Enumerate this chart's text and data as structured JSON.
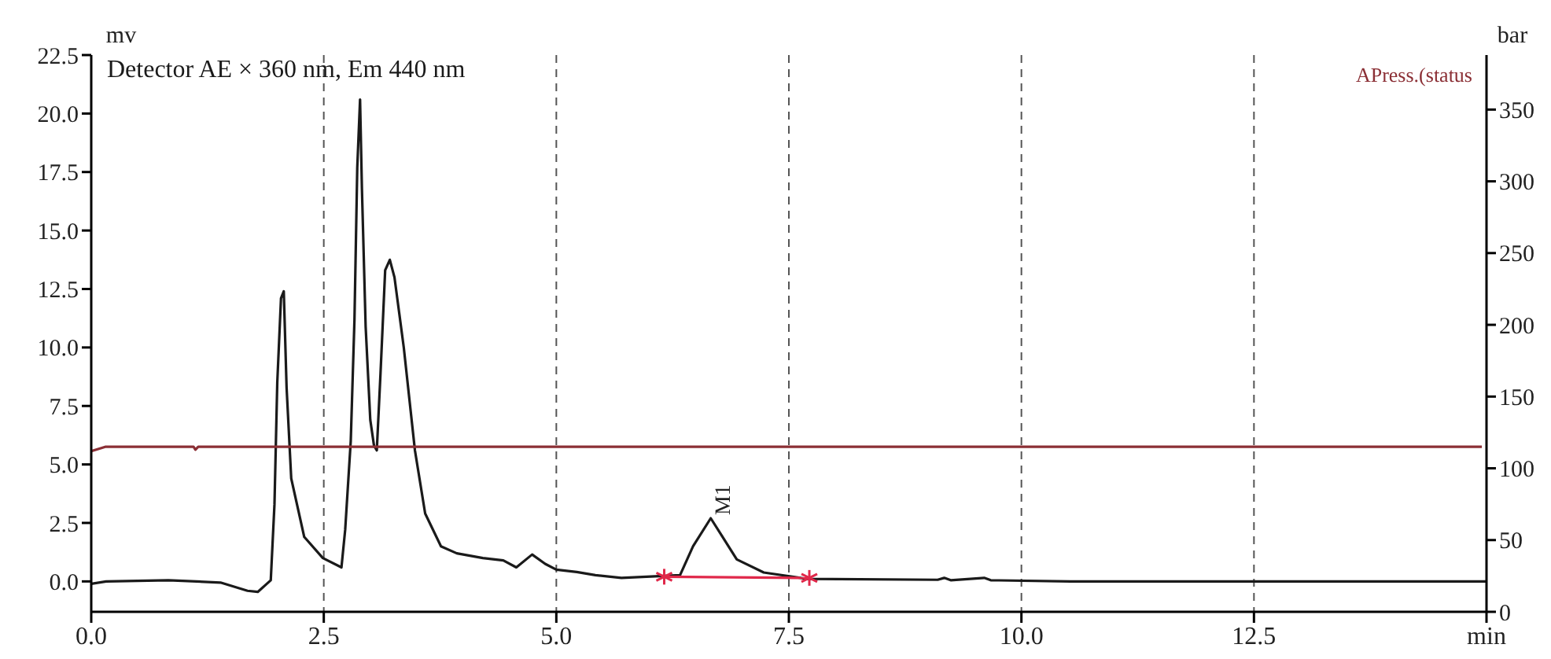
{
  "chart_data": {
    "type": "line",
    "xlim": [
      0,
      15
    ],
    "xticks": [
      {
        "value": 0,
        "label": "0.0"
      },
      {
        "value": 2.5,
        "label": "2.5"
      },
      {
        "value": 5,
        "label": "5.0"
      },
      {
        "value": 7.5,
        "label": "7.5"
      },
      {
        "value": 10,
        "label": "10.0"
      },
      {
        "value": 12.5,
        "label": "12.5"
      },
      {
        "value": 15,
        "label": "min"
      }
    ],
    "ylim": [
      -1.3,
      22.5
    ],
    "yticks": [
      {
        "value": 0,
        "label": "0.0"
      },
      {
        "value": 2.5,
        "label": "2.5"
      },
      {
        "value": 5,
        "label": "5.0"
      },
      {
        "value": 7.5,
        "label": "7.5"
      },
      {
        "value": 10,
        "label": "10.0"
      },
      {
        "value": 12.5,
        "label": "12.5"
      },
      {
        "value": 15,
        "label": "15.0"
      },
      {
        "value": 17.5,
        "label": "17.5"
      },
      {
        "value": 20,
        "label": "20.0"
      },
      {
        "value": 22.5,
        "label": "22.5"
      }
    ],
    "y2lim": [
      0,
      388
    ],
    "y2ticks": [
      0,
      50,
      100,
      150,
      200,
      250,
      300,
      350
    ],
    "ylabel": "mv",
    "y2label": "bar",
    "grid": "x",
    "marker": "none",
    "line_style": "solid",
    "annotations": [
      {
        "text": "M1",
        "x": 6.66,
        "y": 2.7
      }
    ],
    "series": [
      {
        "name": "Detector AE × 360 nm, Em 440 nm",
        "color": "#1a1a1a",
        "x": [
          0,
          0.16,
          0.83,
          1.39,
          1.68,
          1.79,
          1.93,
          1.97,
          2.0,
          2.04,
          2.07,
          2.1,
          2.15,
          2.29,
          2.49,
          2.69,
          2.73,
          2.79,
          2.83,
          2.86,
          2.89,
          2.91,
          2.95,
          3.0,
          3.04,
          3.07,
          3.11,
          3.16,
          3.21,
          3.26,
          3.36,
          3.48,
          3.59,
          3.76,
          3.93,
          4.21,
          4.43,
          4.57,
          4.74,
          4.88,
          5.0,
          5.22,
          5.42,
          5.7,
          6.33,
          6.47,
          6.66,
          6.78,
          6.94,
          7.23,
          7.69,
          9.1,
          9.17,
          9.24,
          9.6,
          9.67,
          10.53,
          15
        ],
        "values": [
          -0.1,
          0,
          0.05,
          -0.05,
          -0.4,
          -0.45,
          0.05,
          3.3,
          8.5,
          12.1,
          12.4,
          8.3,
          4.4,
          1.9,
          1.0,
          0.6,
          2.2,
          6.0,
          11.2,
          17.7,
          20.6,
          16.8,
          10.9,
          6.9,
          5.8,
          5.6,
          8.9,
          13.3,
          13.75,
          13.0,
          10.0,
          5.6,
          2.9,
          1.5,
          1.2,
          1.0,
          0.9,
          0.6,
          1.15,
          0.75,
          0.5,
          0.4,
          0.27,
          0.15,
          0.27,
          1.5,
          2.7,
          1.95,
          0.94,
          0.38,
          0.11,
          0.07,
          0.15,
          0.05,
          0.15,
          0.05,
          0,
          0
        ]
      },
      {
        "name": "APress.(status",
        "color": "#8b2f35",
        "axis": "y2",
        "x": [
          0,
          0.15,
          1.1,
          1.12,
          1.15,
          14.95
        ],
        "values": [
          112,
          115,
          115,
          113,
          115,
          115
        ]
      },
      {
        "color": "#e0284a",
        "marker": "cross",
        "x": [
          6.16,
          7.72
        ],
        "values": [
          0.2,
          0.15
        ]
      }
    ]
  }
}
